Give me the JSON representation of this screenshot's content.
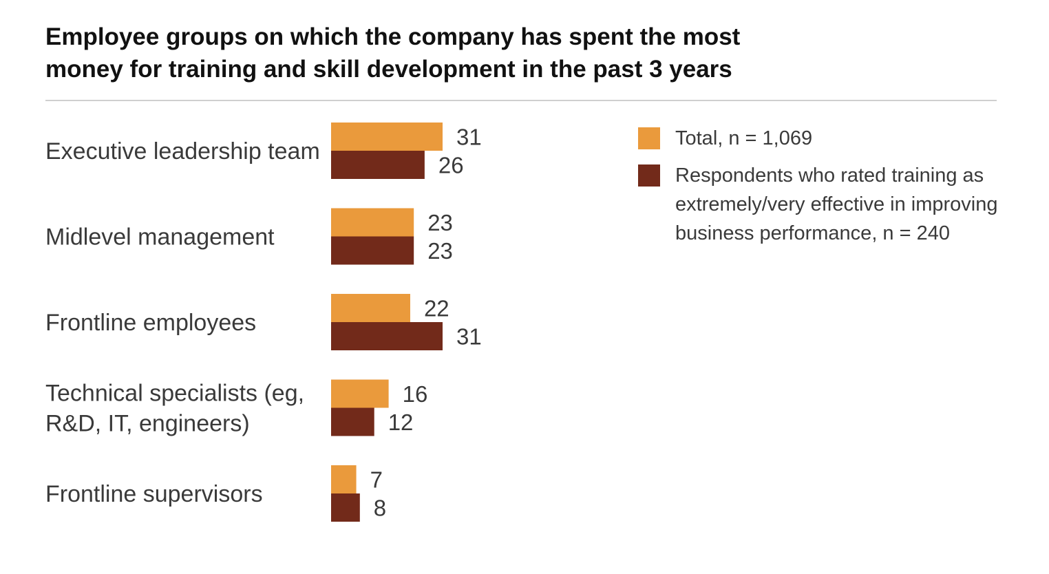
{
  "colors": {
    "total": "#ea9a3c",
    "effective": "#722a1a"
  },
  "chart_data": {
    "type": "bar",
    "orientation": "horizontal",
    "title": "Employee groups on which the company has spent the most money for training and skill development in the past 3 years",
    "title_lines": [
      "Employee groups on which the company has spent the most",
      "money for training and skill development in the past 3 years"
    ],
    "categories": [
      "Executive leadership team",
      "Midlevel management",
      "Frontline employees",
      "Technical specialists (eg, R&D, IT, engineers)",
      "Frontline supervisors"
    ],
    "category_lines": [
      [
        "Executive leadership team"
      ],
      [
        "Midlevel management"
      ],
      [
        "Frontline employees"
      ],
      [
        "Technical specialists (eg,",
        "R&D, IT, engineers)"
      ],
      [
        "Frontline supervisors"
      ]
    ],
    "series": [
      {
        "name": "Total, n = 1,069",
        "color": "#ea9a3c",
        "values": [
          31,
          23,
          22,
          16,
          7
        ]
      },
      {
        "name": "Respondents who rated training as extremely/very effective in improving business performance, n = 240",
        "color": "#722a1a",
        "values": [
          26,
          23,
          31,
          12,
          8
        ]
      }
    ],
    "xlim": [
      0,
      31
    ],
    "grid": false,
    "legend_position": "right"
  }
}
